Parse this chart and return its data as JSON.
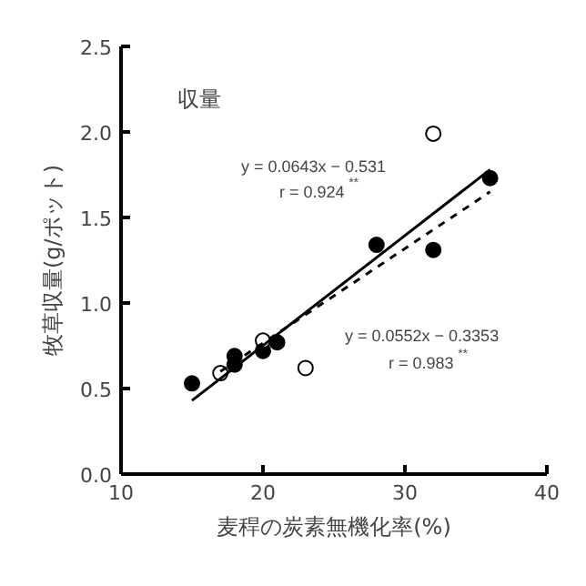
{
  "chart_data": {
    "type": "scatter",
    "xlabel": "麦稈の炭素無機化率(%)",
    "ylabel": "牧草収量(g/ポット)",
    "xlim": [
      10,
      40
    ],
    "xticks": [
      10,
      20,
      30,
      40
    ],
    "ylim": [
      0,
      2.5
    ],
    "yticks": [
      {
        "value": 0,
        "label": "0.0"
      },
      {
        "value": 0.5,
        "label": "0.5"
      },
      {
        "value": 1,
        "label": "1.0"
      },
      {
        "value": 1.5,
        "label": "1.5"
      },
      {
        "value": 2,
        "label": "2.0"
      },
      {
        "value": 2.5,
        "label": "2.5"
      }
    ],
    "grid": false,
    "series": [
      {
        "marker": "circle",
        "color": "#000000",
        "x": [
          15,
          18,
          18,
          20,
          21,
          28,
          32,
          36
        ],
        "values": [
          0.53,
          0.69,
          0.64,
          0.72,
          0.77,
          1.34,
          1.31,
          1.73
        ]
      },
      {
        "marker": "circle",
        "color": "#ffffff",
        "x": [
          17,
          20,
          23,
          32
        ],
        "values": [
          0.59,
          0.78,
          0.62,
          1.99
        ]
      },
      {
        "type": "line",
        "line_style": "solid",
        "color": "#000000",
        "x": [
          15,
          36
        ],
        "values": [
          0.43,
          1.78
        ]
      },
      {
        "type": "line",
        "line_style": "dashed",
        "color": "#000000",
        "x": [
          17,
          36
        ],
        "values": [
          0.6,
          1.65
        ]
      }
    ],
    "annotations": [
      "収量",
      "y = 0.0643x − 0.531",
      "r = 0.924$^{**}$",
      "y = 0.0552x − 0.3353",
      "r = 0.983$^{**}$"
    ]
  }
}
